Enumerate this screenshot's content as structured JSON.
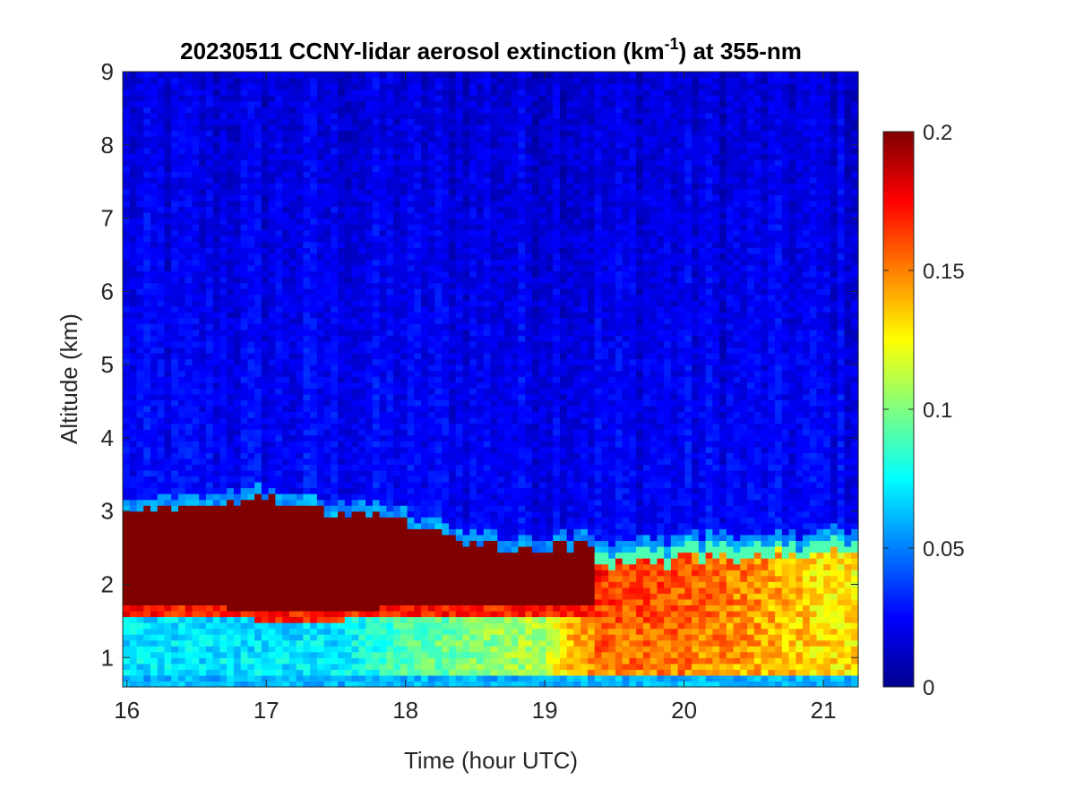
{
  "chart_data": {
    "type": "heatmap",
    "title_main": "20230511 CCNY-lidar aerosol extinction (km",
    "title_sup": "-1",
    "title_end": ") at 355-nm",
    "xlabel": "Time (hour UTC)",
    "ylabel": "Altitude (km)",
    "xlim": [
      15.97,
      21.25
    ],
    "ylim": [
      0.6,
      9.0
    ],
    "xticks": [
      16,
      17,
      18,
      19,
      20,
      21
    ],
    "xtick_labels": [
      "16",
      "17",
      "18",
      "19",
      "20",
      "21"
    ],
    "yticks": [
      1,
      2,
      3,
      4,
      5,
      6,
      7,
      8,
      9
    ],
    "ytick_labels": [
      "1",
      "2",
      "3",
      "4",
      "5",
      "6",
      "7",
      "8",
      "9"
    ],
    "colorbar": {
      "colormap": "jet",
      "clim": [
        0,
        0.2
      ],
      "ticks": [
        0,
        0.05,
        0.1,
        0.15,
        0.2
      ],
      "tick_labels": [
        "0",
        "0.05",
        "0.1",
        "0.15",
        "0.2"
      ]
    },
    "layer_profile": {
      "time_hour": [
        16.0,
        16.5,
        17.0,
        17.5,
        18.0,
        18.5,
        19.0,
        19.2,
        19.5,
        20.0,
        20.5,
        21.0,
        21.25
      ],
      "aerosol_top_km": [
        3.0,
        3.05,
        3.15,
        3.0,
        2.85,
        2.55,
        2.45,
        2.55,
        2.4,
        2.5,
        2.55,
        2.55,
        2.6
      ],
      "dense_layer_base_km": [
        1.75,
        1.7,
        1.65,
        1.65,
        1.7,
        1.75,
        1.75,
        1.75,
        null,
        null,
        null,
        null,
        null
      ],
      "dense_layer_extinction": 0.2,
      "upper_pbl_extinction": [
        0.2,
        0.2,
        0.2,
        0.2,
        0.2,
        0.2,
        0.2,
        0.18,
        0.17,
        0.16,
        0.15,
        0.13,
        0.13
      ],
      "lower_pbl_extinction": [
        0.07,
        0.07,
        0.07,
        0.07,
        0.09,
        0.1,
        0.11,
        0.14,
        0.15,
        0.15,
        0.14,
        0.13,
        0.13
      ],
      "free_troposphere_extinction": 0.025
    }
  }
}
